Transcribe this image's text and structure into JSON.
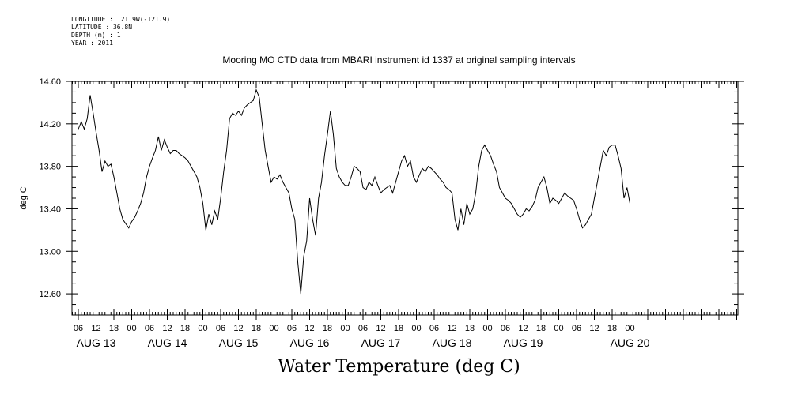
{
  "header": {
    "longitude": "LONGITUDE : 121.9W(-121.9)",
    "latitude": "LATITUDE : 36.8N",
    "depth": "DEPTH (m) : 1",
    "year": "YEAR : 2011"
  },
  "chart_data": {
    "type": "line",
    "title": "Mooring MO CTD data from MBARI instrument id 1337 at original sampling intervals",
    "bottom_title": "Water Temperature (deg C)",
    "xlabel": "",
    "ylabel": "deg C",
    "ylim": [
      12.4,
      14.6
    ],
    "xlim_hours": [
      0,
      200
    ],
    "y_ticks": [
      "12.60",
      "13.00",
      "13.40",
      "13.80",
      "14.20",
      "14.60"
    ],
    "x_hour_labels": [
      "06",
      "12",
      "18",
      "00",
      "06",
      "12",
      "18",
      "00",
      "06",
      "12",
      "18",
      "00",
      "06",
      "12",
      "18",
      "00",
      "06",
      "12",
      "18",
      "00",
      "06",
      "12",
      "18",
      "00",
      "06",
      "12",
      "18",
      "00",
      "06",
      "12",
      "18",
      "00"
    ],
    "day_labels": [
      "AUG 13",
      "AUG 14",
      "AUG 15",
      "AUG 16",
      "AUG 17",
      "AUG 18",
      "AUG 19",
      "AUG 20"
    ],
    "grid": false,
    "series": [
      {
        "color": "#000000",
        "points": [
          [
            0,
            14.15
          ],
          [
            1,
            14.22
          ],
          [
            2,
            14.15
          ],
          [
            3,
            14.25
          ],
          [
            4,
            14.47
          ],
          [
            5,
            14.3
          ],
          [
            6,
            14.12
          ],
          [
            7,
            13.95
          ],
          [
            8,
            13.75
          ],
          [
            9,
            13.85
          ],
          [
            10,
            13.8
          ],
          [
            11,
            13.82
          ],
          [
            12,
            13.7
          ],
          [
            13,
            13.55
          ],
          [
            14,
            13.4
          ],
          [
            15,
            13.3
          ],
          [
            16,
            13.26
          ],
          [
            17,
            13.22
          ],
          [
            18,
            13.28
          ],
          [
            19,
            13.32
          ],
          [
            20,
            13.38
          ],
          [
            21,
            13.45
          ],
          [
            22,
            13.55
          ],
          [
            23,
            13.7
          ],
          [
            24,
            13.8
          ],
          [
            25,
            13.88
          ],
          [
            26,
            13.95
          ],
          [
            27,
            14.08
          ],
          [
            28,
            13.95
          ],
          [
            29,
            14.05
          ],
          [
            30,
            13.98
          ],
          [
            31,
            13.92
          ],
          [
            32,
            13.95
          ],
          [
            33,
            13.95
          ],
          [
            34,
            13.92
          ],
          [
            35,
            13.9
          ],
          [
            36,
            13.88
          ],
          [
            37,
            13.85
          ],
          [
            38,
            13.8
          ],
          [
            39,
            13.75
          ],
          [
            40,
            13.7
          ],
          [
            41,
            13.6
          ],
          [
            42,
            13.45
          ],
          [
            43,
            13.2
          ],
          [
            44,
            13.35
          ],
          [
            45,
            13.25
          ],
          [
            46,
            13.38
          ],
          [
            47,
            13.3
          ],
          [
            48,
            13.5
          ],
          [
            49,
            13.75
          ],
          [
            50,
            13.95
          ],
          [
            51,
            14.25
          ],
          [
            52,
            14.3
          ],
          [
            53,
            14.28
          ],
          [
            54,
            14.32
          ],
          [
            55,
            14.28
          ],
          [
            56,
            14.35
          ],
          [
            57,
            14.38
          ],
          [
            58,
            14.4
          ],
          [
            59,
            14.42
          ],
          [
            60,
            14.52
          ],
          [
            61,
            14.45
          ],
          [
            62,
            14.2
          ],
          [
            63,
            13.95
          ],
          [
            64,
            13.8
          ],
          [
            65,
            13.65
          ],
          [
            66,
            13.7
          ],
          [
            67,
            13.68
          ],
          [
            68,
            13.72
          ],
          [
            69,
            13.65
          ],
          [
            70,
            13.6
          ],
          [
            71,
            13.55
          ],
          [
            72,
            13.4
          ],
          [
            73,
            13.3
          ],
          [
            74,
            12.9
          ],
          [
            75,
            12.6
          ],
          [
            76,
            12.95
          ],
          [
            77,
            13.1
          ],
          [
            78,
            13.5
          ],
          [
            79,
            13.3
          ],
          [
            80,
            13.15
          ],
          [
            81,
            13.5
          ],
          [
            82,
            13.65
          ],
          [
            83,
            13.9
          ],
          [
            84,
            14.1
          ],
          [
            85,
            14.32
          ],
          [
            86,
            14.1
          ],
          [
            87,
            13.78
          ],
          [
            88,
            13.7
          ],
          [
            89,
            13.65
          ],
          [
            90,
            13.62
          ],
          [
            91,
            13.62
          ],
          [
            92,
            13.7
          ],
          [
            93,
            13.8
          ],
          [
            94,
            13.78
          ],
          [
            95,
            13.75
          ],
          [
            96,
            13.6
          ],
          [
            97,
            13.58
          ],
          [
            98,
            13.65
          ],
          [
            99,
            13.62
          ],
          [
            100,
            13.7
          ],
          [
            101,
            13.62
          ],
          [
            102,
            13.55
          ],
          [
            103,
            13.58
          ],
          [
            104,
            13.6
          ],
          [
            105,
            13.62
          ],
          [
            106,
            13.55
          ],
          [
            107,
            13.65
          ],
          [
            108,
            13.75
          ],
          [
            109,
            13.85
          ],
          [
            110,
            13.9
          ],
          [
            111,
            13.8
          ],
          [
            112,
            13.85
          ],
          [
            113,
            13.7
          ],
          [
            114,
            13.65
          ],
          [
            115,
            13.72
          ],
          [
            116,
            13.78
          ],
          [
            117,
            13.75
          ],
          [
            118,
            13.8
          ],
          [
            119,
            13.78
          ],
          [
            120,
            13.75
          ],
          [
            121,
            13.72
          ],
          [
            122,
            13.68
          ],
          [
            123,
            13.65
          ],
          [
            124,
            13.6
          ],
          [
            125,
            13.58
          ],
          [
            126,
            13.55
          ],
          [
            127,
            13.3
          ],
          [
            128,
            13.2
          ],
          [
            129,
            13.4
          ],
          [
            130,
            13.25
          ],
          [
            131,
            13.45
          ],
          [
            132,
            13.35
          ],
          [
            133,
            13.4
          ],
          [
            134,
            13.55
          ],
          [
            135,
            13.8
          ],
          [
            136,
            13.95
          ],
          [
            137,
            14.0
          ],
          [
            138,
            13.95
          ],
          [
            139,
            13.9
          ],
          [
            140,
            13.82
          ],
          [
            141,
            13.75
          ],
          [
            142,
            13.6
          ],
          [
            143,
            13.55
          ],
          [
            144,
            13.5
          ],
          [
            145,
            13.48
          ],
          [
            146,
            13.45
          ],
          [
            147,
            13.4
          ],
          [
            148,
            13.35
          ],
          [
            149,
            13.32
          ],
          [
            150,
            13.35
          ],
          [
            151,
            13.4
          ],
          [
            152,
            13.38
          ],
          [
            153,
            13.42
          ],
          [
            154,
            13.48
          ],
          [
            155,
            13.6
          ],
          [
            156,
            13.65
          ],
          [
            157,
            13.7
          ],
          [
            158,
            13.6
          ],
          [
            159,
            13.45
          ],
          [
            160,
            13.5
          ],
          [
            161,
            13.48
          ],
          [
            162,
            13.45
          ],
          [
            163,
            13.5
          ],
          [
            164,
            13.55
          ],
          [
            165,
            13.52
          ],
          [
            166,
            13.5
          ],
          [
            167,
            13.48
          ],
          [
            168,
            13.4
          ],
          [
            169,
            13.3
          ],
          [
            170,
            13.22
          ],
          [
            171,
            13.25
          ],
          [
            172,
            13.3
          ],
          [
            173,
            13.35
          ],
          [
            174,
            13.5
          ],
          [
            175,
            13.65
          ],
          [
            176,
            13.8
          ],
          [
            177,
            13.95
          ],
          [
            178,
            13.9
          ],
          [
            179,
            13.98
          ],
          [
            180,
            14.0
          ],
          [
            181,
            14.0
          ],
          [
            182,
            13.9
          ],
          [
            183,
            13.78
          ],
          [
            184,
            13.5
          ],
          [
            185,
            13.6
          ],
          [
            186,
            13.45
          ]
        ]
      }
    ]
  }
}
